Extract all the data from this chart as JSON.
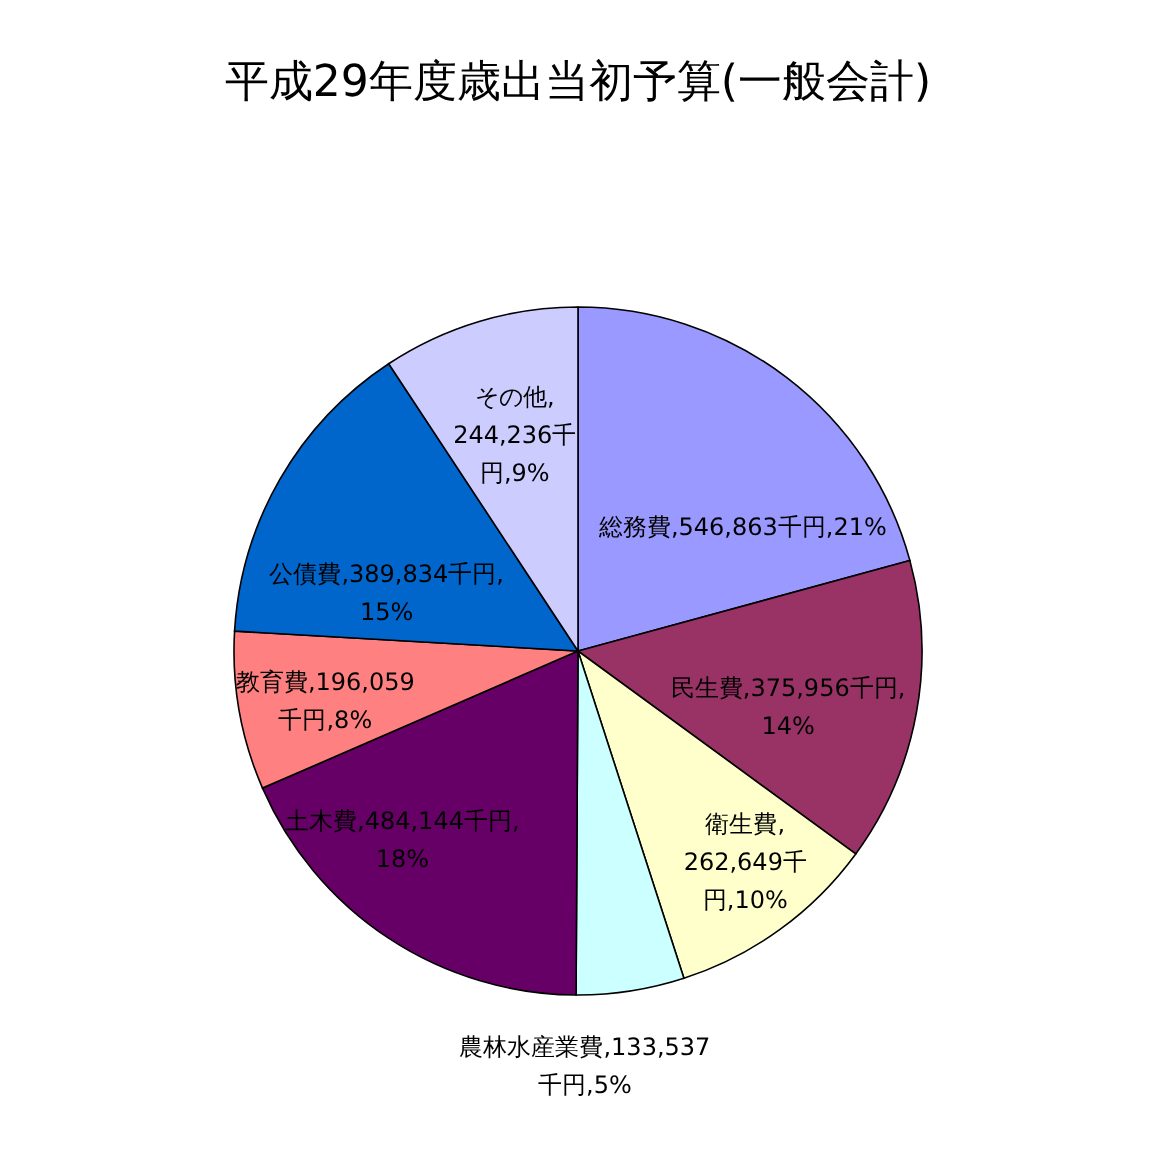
{
  "chart_data": {
    "type": "pie",
    "title": "平成29年度歳出当初予算(一般会計)",
    "categories": [
      "総務費",
      "民生費",
      "衛生費",
      "農林水産業費",
      "土木費",
      "教育費",
      "公債費",
      "その他"
    ],
    "values": [
      546863,
      375956,
      262649,
      133537,
      484144,
      196059,
      389834,
      244236
    ],
    "colors": [
      "#9999ff",
      "#993366",
      "#ffffcc",
      "#ccffff",
      "#660066",
      "#ff8080",
      "#0066cc",
      "#ccccff"
    ],
    "value_labels": [
      ",546,863千円,21%",
      ",375,956千円,14%",
      ",262,649千円,10%",
      ",133,537千円,5%",
      ",484,144千円,18%",
      ",196,059千円,8%",
      ",389,834千円,15%",
      ",244,236千円,9%"
    ],
    "legend": false
  }
}
